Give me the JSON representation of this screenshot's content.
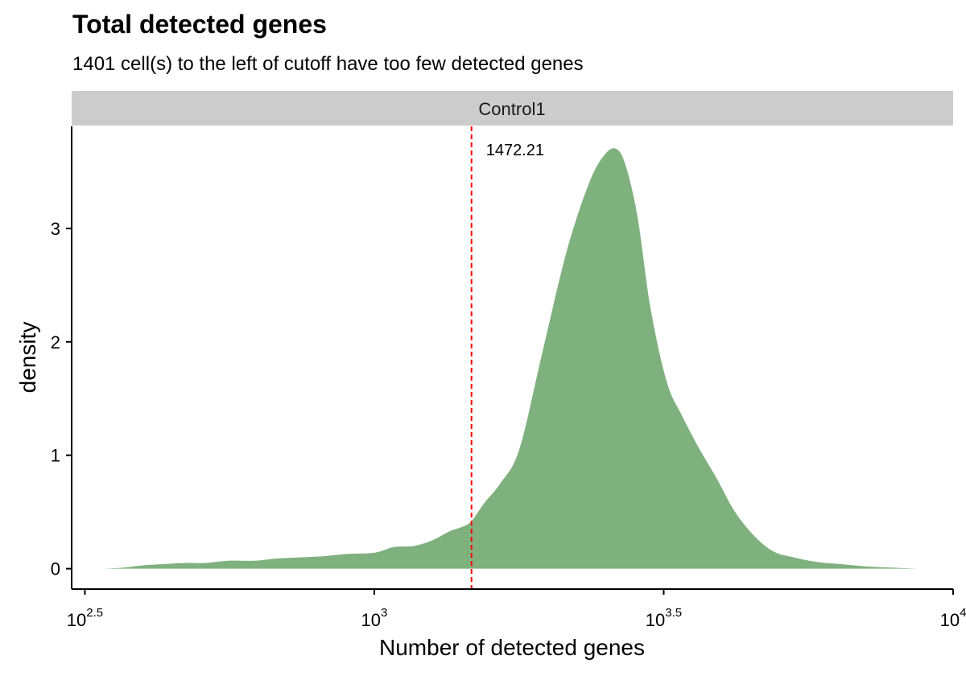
{
  "chart_data": {
    "type": "area",
    "title": "Total detected genes",
    "subtitle": "1401 cell(s) to the left of cutoff have too few detected genes",
    "xlabel": "Number of detected genes",
    "ylabel": "density",
    "facet_label": "Control1",
    "x_scale": "log10",
    "xlim": [
      300,
      10000
    ],
    "ylim": [
      -0.18,
      3.9
    ],
    "x_ticks": [
      {
        "value": 316.23,
        "base": "10",
        "exp": "2.5"
      },
      {
        "value": 1000,
        "base": "10",
        "exp": "3"
      },
      {
        "value": 3162.28,
        "base": "10",
        "exp": "3.5"
      },
      {
        "value": 10000,
        "base": "10",
        "exp": "4"
      }
    ],
    "y_ticks": [
      0,
      1,
      2,
      3
    ],
    "cutoff": {
      "value": 1472.21,
      "label": "1472.21",
      "color": "#ff0000"
    },
    "fill_color": "#7fb17f",
    "grid": false,
    "series": [
      {
        "x": [
          340,
          370,
          400,
          430,
          470,
          510,
          560,
          620,
          680,
          750,
          820,
          900,
          1000,
          1080,
          1170,
          1260,
          1350,
          1420,
          1472,
          1550,
          1650,
          1780,
          1950,
          2150,
          2350,
          2500,
          2620,
          2720,
          2850,
          3000,
          3200,
          3400,
          3650,
          3900,
          4200,
          4550,
          4900,
          5300,
          5800,
          6400,
          7100,
          7800,
          8700
        ],
        "y": [
          0.0,
          0.01,
          0.03,
          0.04,
          0.05,
          0.05,
          0.07,
          0.07,
          0.09,
          0.1,
          0.11,
          0.13,
          0.14,
          0.19,
          0.2,
          0.25,
          0.33,
          0.37,
          0.42,
          0.58,
          0.75,
          1.05,
          1.9,
          2.8,
          3.4,
          3.65,
          3.7,
          3.55,
          3.1,
          2.3,
          1.65,
          1.35,
          1.05,
          0.8,
          0.5,
          0.28,
          0.15,
          0.1,
          0.06,
          0.04,
          0.02,
          0.01,
          0.0
        ]
      }
    ]
  }
}
